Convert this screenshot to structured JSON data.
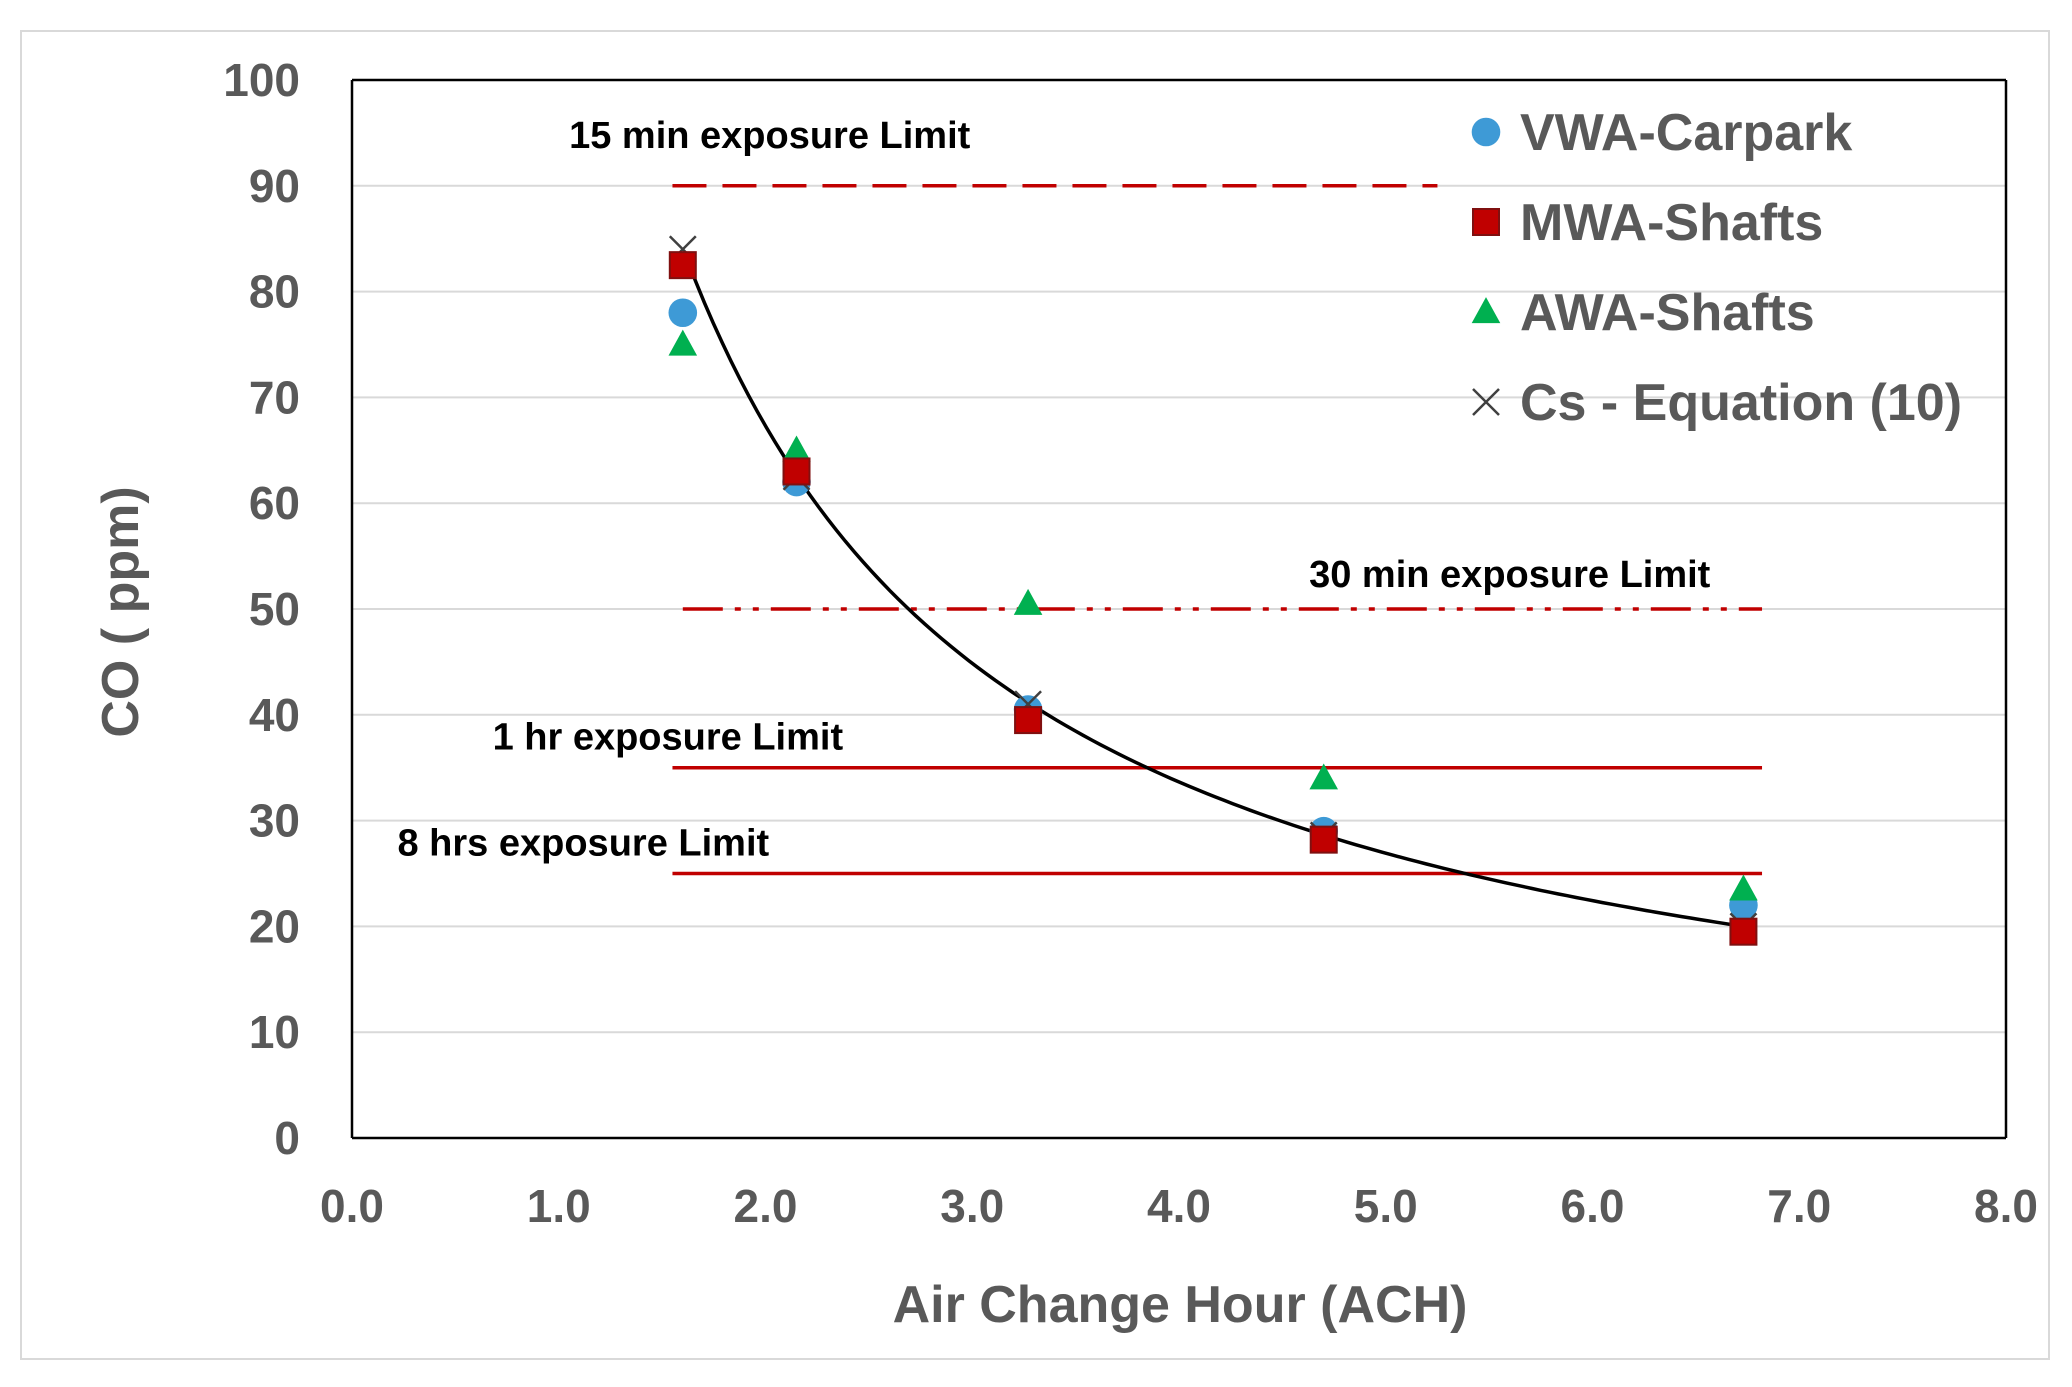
{
  "colors": {
    "vwa": "#3e9ad6",
    "mwa": "#c00000",
    "awa": "#00b050",
    "cs": "#404040",
    "limit": "#c00000",
    "grid": "#d9d9d9",
    "axis": "#000000",
    "text": "#595959"
  },
  "chart_data": {
    "type": "scatter",
    "title": "",
    "xlabel": "Air Change Hour (ACH)",
    "ylabel": "CO ( ppm)",
    "xlim": [
      0,
      8
    ],
    "ylim": [
      0,
      100
    ],
    "x_ticks": [
      "0.0",
      "1.0",
      "2.0",
      "3.0",
      "4.0",
      "5.0",
      "6.0",
      "7.0",
      "8.0"
    ],
    "y_ticks": [
      "0",
      "10",
      "20",
      "30",
      "40",
      "50",
      "60",
      "70",
      "80",
      "90",
      "100"
    ],
    "grid": "horizontal",
    "legend_position": "top-right",
    "series": [
      {
        "name": "VWA-Carpark",
        "marker": "circle",
        "color": "#3e9ad6",
        "points": [
          [
            1.6,
            78
          ],
          [
            2.15,
            62
          ],
          [
            3.27,
            40.5
          ],
          [
            4.7,
            29
          ],
          [
            6.73,
            22
          ]
        ]
      },
      {
        "name": "MWA-Shafts",
        "marker": "square",
        "color": "#c00000",
        "points": [
          [
            1.6,
            82.5
          ],
          [
            2.15,
            63
          ],
          [
            3.27,
            39.5
          ],
          [
            4.7,
            28.2
          ],
          [
            6.73,
            19.5
          ]
        ]
      },
      {
        "name": "AWA-Shafts",
        "marker": "triangle",
        "color": "#00b050",
        "points": [
          [
            1.6,
            75
          ],
          [
            2.15,
            65
          ],
          [
            3.27,
            50.5
          ],
          [
            4.7,
            34
          ],
          [
            6.73,
            23.5
          ]
        ]
      },
      {
        "name": "Cs - Equation (10)",
        "marker": "cross",
        "color": "#404040",
        "points": [
          [
            1.6,
            84
          ],
          [
            2.15,
            62.5
          ],
          [
            3.27,
            41
          ],
          [
            4.7,
            28.6
          ],
          [
            6.73,
            20
          ]
        ]
      }
    ],
    "fit_curve": {
      "name": "Cs - Equation (10) trend",
      "equation": "y = 134.6 / x",
      "x_range": [
        1.62,
        6.73
      ]
    },
    "reference_lines": [
      {
        "label": "15 min exposure Limit",
        "y": 90,
        "x_range": [
          1.55,
          5.25
        ],
        "style": "dashed"
      },
      {
        "label": "30 min exposure Limit",
        "y": 50,
        "x_range": [
          1.6,
          6.82
        ],
        "style": "dash-dot"
      },
      {
        "label": "1 hr exposure Limit",
        "y": 35,
        "x_range": [
          1.55,
          6.82
        ],
        "style": "solid"
      },
      {
        "label": "8 hrs exposure Limit",
        "y": 25,
        "x_range": [
          1.55,
          6.82
        ],
        "style": "solid"
      }
    ]
  }
}
